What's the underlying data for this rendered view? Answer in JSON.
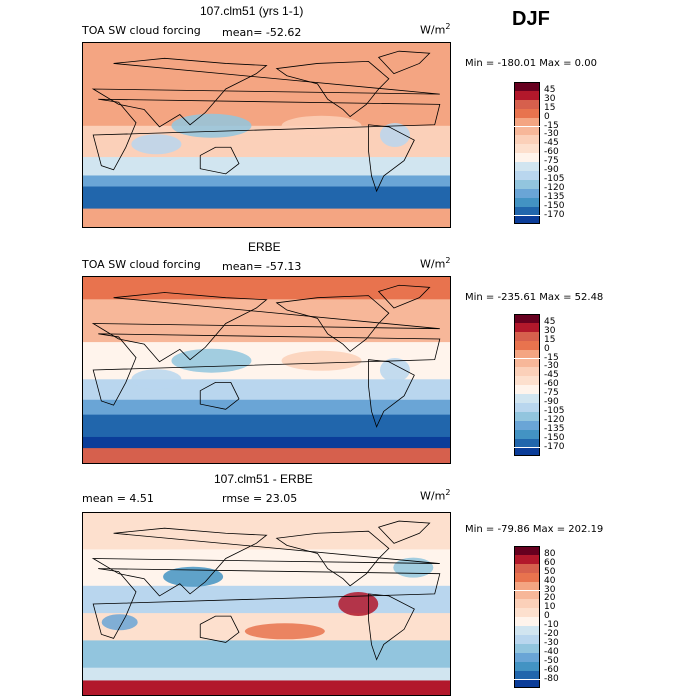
{
  "season": "DJF",
  "panels": [
    {
      "title": "107.clm51 (yrs 1-1)",
      "left_label": "TOA SW cloud forcing",
      "stat_text": "mean= -52.62",
      "units_base": "W/m",
      "units_exp": "2",
      "minmax_text": "Min = -180.01 Max =    0.00",
      "cbar_levels": [
        "45",
        "30",
        "15",
        "0",
        "-15",
        "-30",
        "-45",
        "-60",
        "-75",
        "-90",
        "-105",
        "-120",
        "-135",
        "-150",
        "-170"
      ],
      "cbar_colors": [
        "#67001f",
        "#b2182b",
        "#d6604d",
        "#e8734e",
        "#f4a582",
        "#f7b799",
        "#fbd0b9",
        "#fde0ce",
        "#fff4ec",
        "#d1e5f0",
        "#b9d6ee",
        "#92c5de",
        "#6aa5d6",
        "#4393c3",
        "#2166ac",
        "#0b3d99"
      ],
      "map_style": "model"
    },
    {
      "title": "ERBE",
      "left_label": "TOA SW cloud forcing",
      "stat_text": "mean= -57.13",
      "units_base": "W/m",
      "units_exp": "2",
      "minmax_text": "Min = -235.61 Max =  52.48",
      "cbar_levels": [
        "45",
        "30",
        "15",
        "0",
        "-15",
        "-30",
        "-45",
        "-60",
        "-75",
        "-90",
        "-105",
        "-120",
        "-135",
        "-150",
        "-170"
      ],
      "cbar_colors": [
        "#67001f",
        "#b2182b",
        "#d6604d",
        "#e8734e",
        "#f4a582",
        "#f7b799",
        "#fbd0b9",
        "#fde0ce",
        "#fff4ec",
        "#d1e5f0",
        "#b9d6ee",
        "#92c5de",
        "#6aa5d6",
        "#4393c3",
        "#2166ac",
        "#0b3d99"
      ],
      "map_style": "obs"
    },
    {
      "title": "107.clm51 - ERBE",
      "left_label": "mean =   4.51",
      "stat_text": "rmse =  23.05",
      "units_base": "W/m",
      "units_exp": "2",
      "minmax_text": "Min = -79.86 Max = 202.19",
      "cbar_levels": [
        "80",
        "60",
        "50",
        "40",
        "30",
        "20",
        "10",
        "0",
        "-10",
        "-20",
        "-30",
        "-40",
        "-50",
        "-60",
        "-80"
      ],
      "cbar_colors": [
        "#67001f",
        "#b2182b",
        "#d6604d",
        "#e8734e",
        "#f4a582",
        "#f7b799",
        "#fbd0b9",
        "#fde0ce",
        "#fff4ec",
        "#d1e5f0",
        "#b9d6ee",
        "#92c5de",
        "#6aa5d6",
        "#4393c3",
        "#2166ac",
        "#0b3d99"
      ],
      "map_style": "diff"
    }
  ],
  "chart_data": [
    {
      "type": "heatmap",
      "title": "107.clm51 (yrs 1-1)",
      "variable": "TOA SW cloud forcing",
      "units": "W/m2",
      "mean": -52.62,
      "min": -180.01,
      "max": 0.0,
      "levels": [
        45,
        30,
        15,
        0,
        -15,
        -30,
        -45,
        -60,
        -75,
        -90,
        -105,
        -120,
        -135,
        -150,
        -170
      ]
    },
    {
      "type": "heatmap",
      "title": "ERBE",
      "variable": "TOA SW cloud forcing",
      "units": "W/m2",
      "mean": -57.13,
      "min": -235.61,
      "max": 52.48,
      "levels": [
        45,
        30,
        15,
        0,
        -15,
        -30,
        -45,
        -60,
        -75,
        -90,
        -105,
        -120,
        -135,
        -150,
        -170
      ]
    },
    {
      "type": "heatmap",
      "title": "107.clm51 - ERBE",
      "units": "W/m2",
      "mean": 4.51,
      "rmse": 23.05,
      "min": -79.86,
      "max": 202.19,
      "levels": [
        80,
        60,
        50,
        40,
        30,
        20,
        10,
        0,
        -10,
        -20,
        -30,
        -40,
        -50,
        -60,
        -80
      ]
    }
  ]
}
